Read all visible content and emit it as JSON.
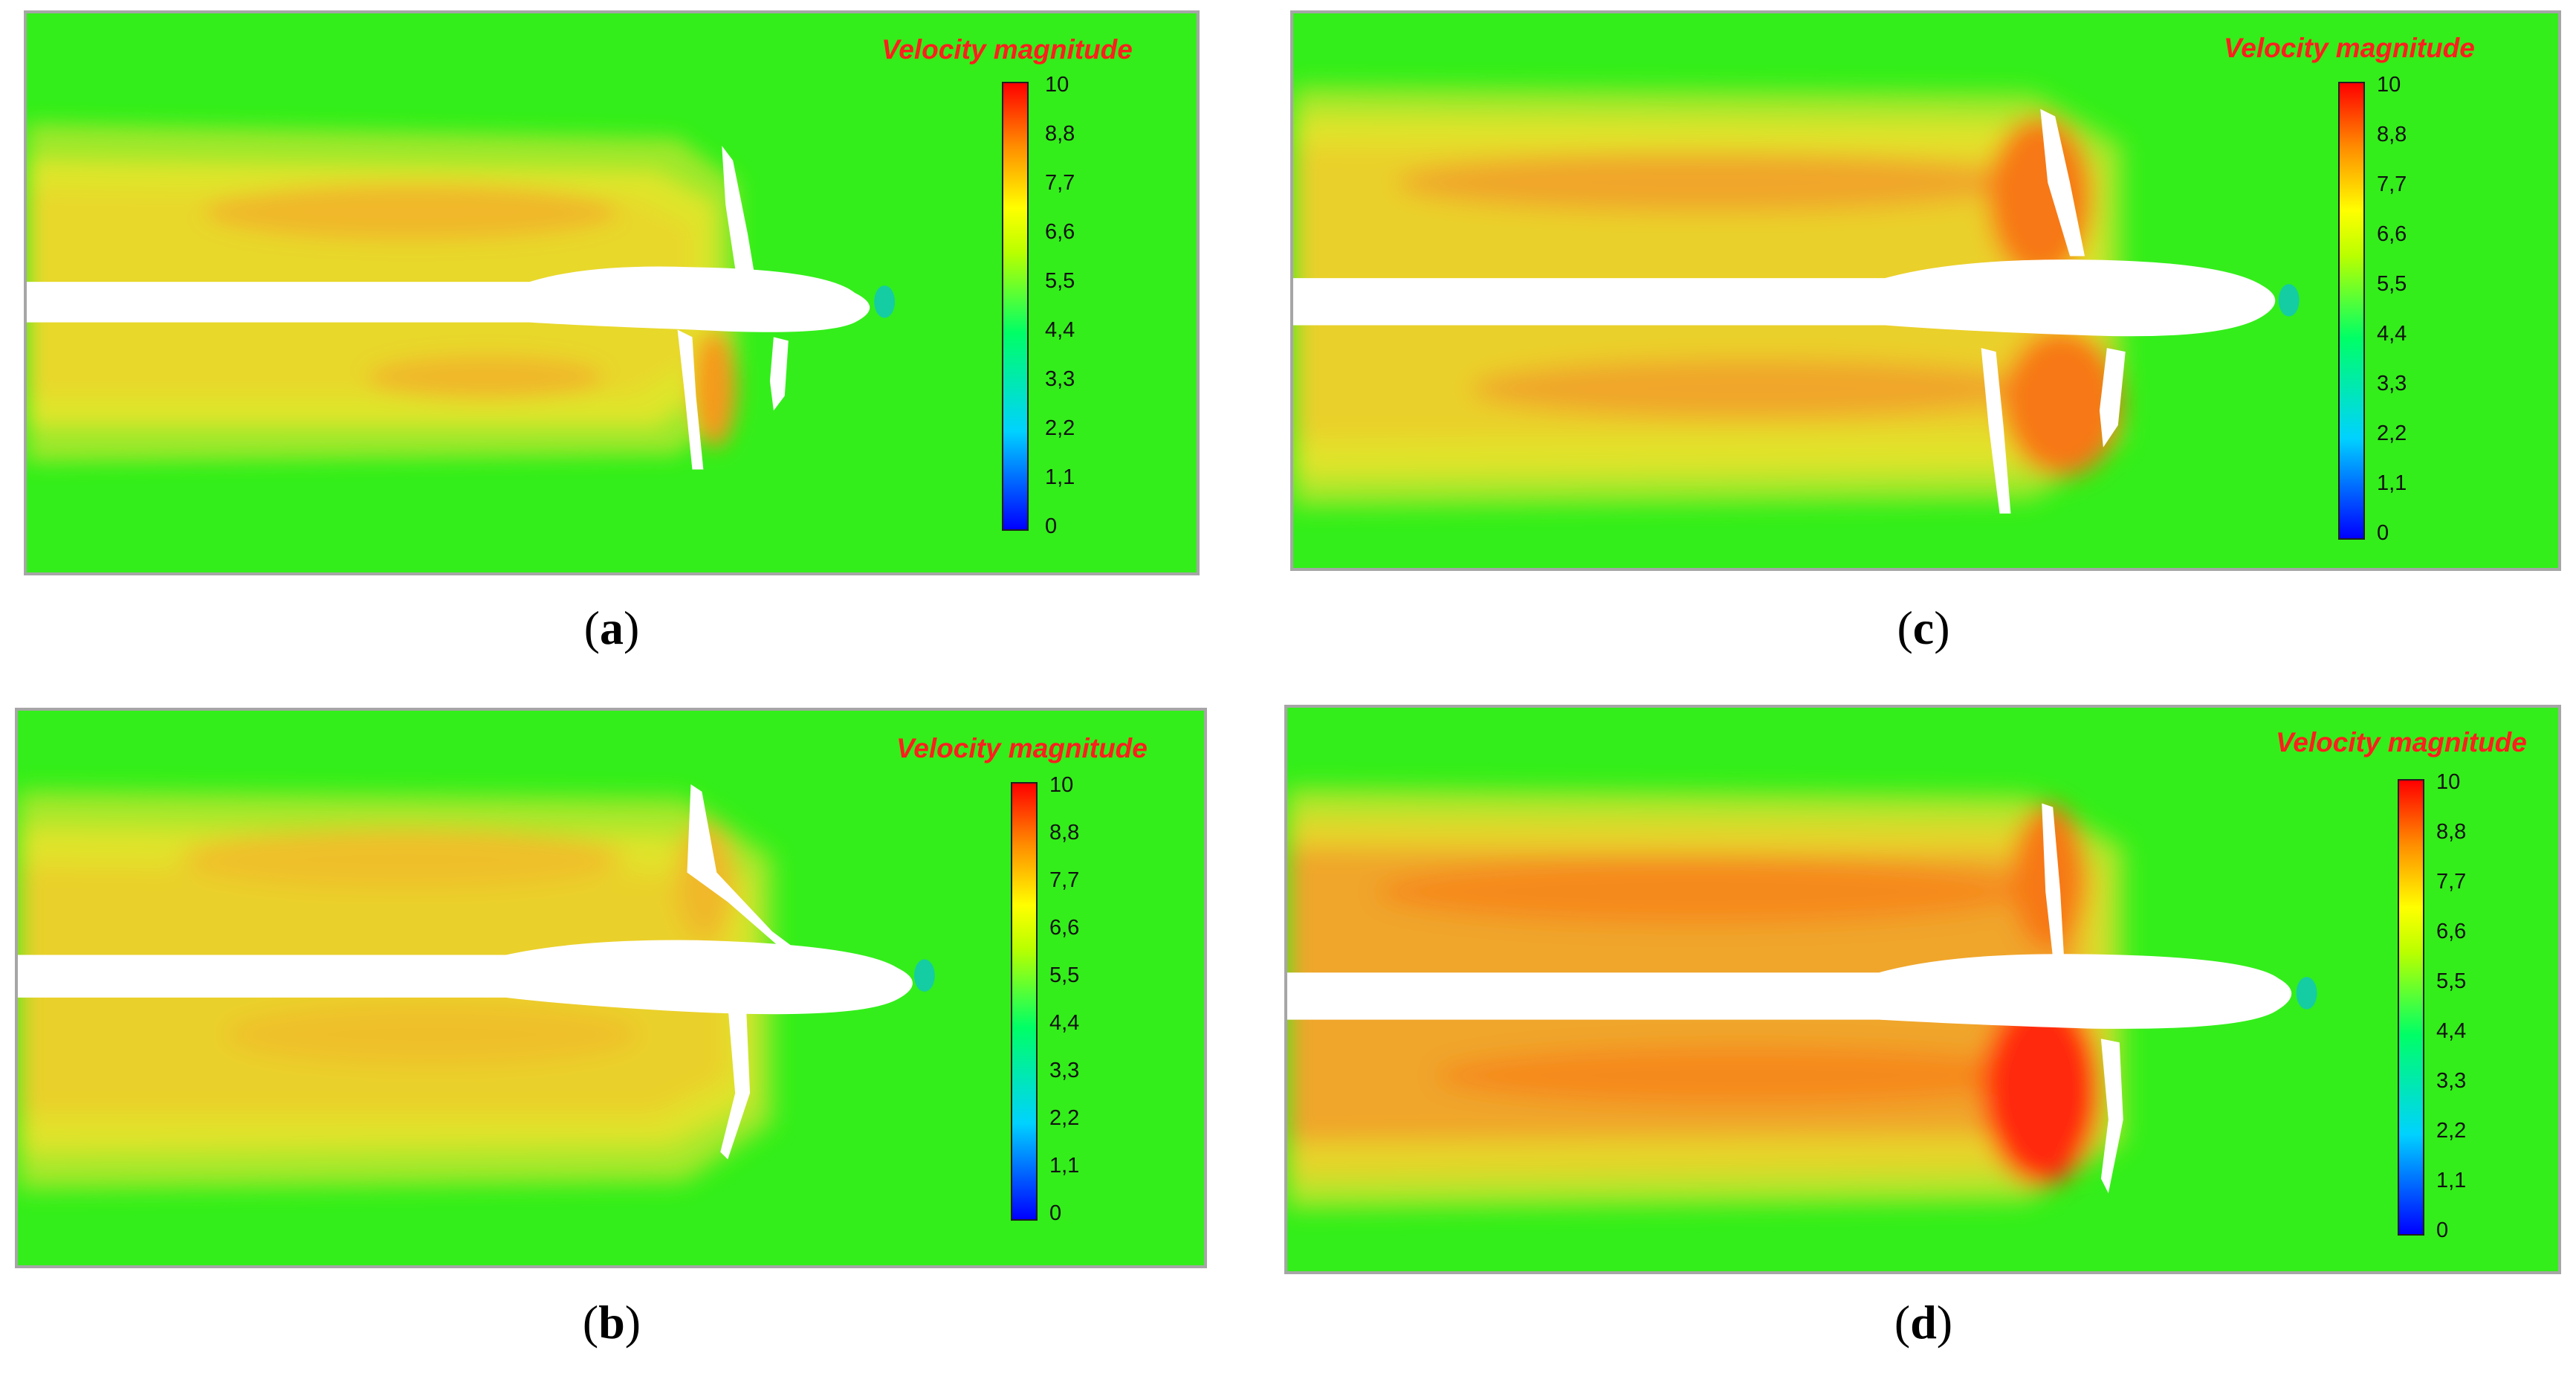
{
  "legend": {
    "title": "Velocity magnitude",
    "ticks": [
      "10",
      "8,8",
      "7,7",
      "6,6",
      "5,5",
      "4,4",
      "3,3",
      "2,2",
      "1,1",
      "0"
    ]
  },
  "panels": [
    {
      "id": "a",
      "caption_open": "(",
      "caption_letter": "a",
      "caption_close": ")"
    },
    {
      "id": "b",
      "caption_open": "(",
      "caption_letter": "b",
      "caption_close": ")"
    },
    {
      "id": "c",
      "caption_open": "(",
      "caption_letter": "c",
      "caption_close": ")"
    },
    {
      "id": "d",
      "caption_open": "(",
      "caption_letter": "d",
      "caption_close": ")"
    }
  ],
  "colors": {
    "background_flow": "#33ee1a",
    "wake_yellow": "#e6e62a",
    "wake_orange": "#f59a1a",
    "high_red": "#ff2a10",
    "body": "#ffffff",
    "frame": "#a6a6a6"
  }
}
